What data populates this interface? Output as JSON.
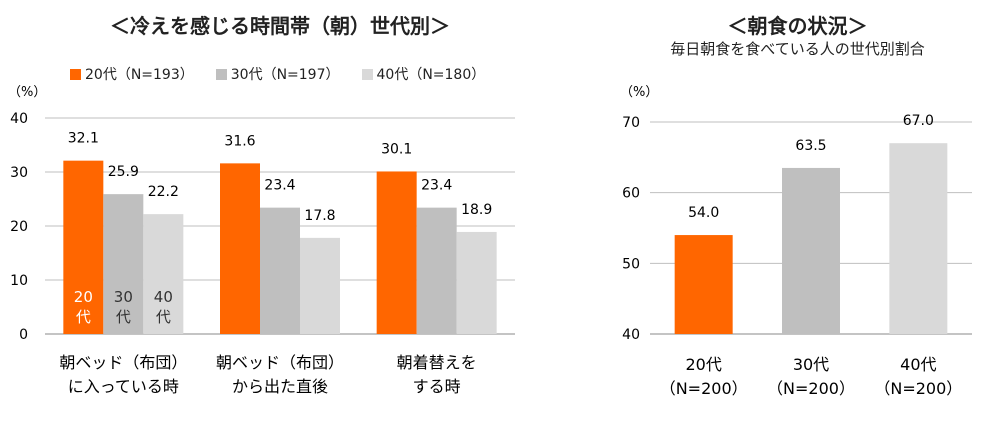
{
  "chart_data": [
    {
      "type": "bar",
      "title": "＜冷えを感じる時間帯（朝）世代別＞",
      "unit_label": "（%）",
      "ylim": [
        0,
        40
      ],
      "yticks": [
        0,
        10,
        20,
        30,
        40
      ],
      "grid": true,
      "legend_position": "top",
      "categories": [
        [
          "朝ベッド（布団）",
          "に入っている時"
        ],
        [
          "朝ベッド（布団）",
          "から出た直後"
        ],
        [
          "朝着替えを",
          "する時"
        ]
      ],
      "series": [
        {
          "name": "20代（N=193）",
          "color": "#FF6600",
          "in_bar_label": [
            "20",
            "代"
          ],
          "values": [
            32.1,
            31.6,
            30.1
          ]
        },
        {
          "name": "30代（N=197）",
          "color": "#BFBFBF",
          "in_bar_label": [
            "30",
            "代"
          ],
          "values": [
            25.9,
            23.4,
            23.4
          ]
        },
        {
          "name": "40代（N=180）",
          "color": "#D9D9D9",
          "in_bar_label": [
            "40",
            "代"
          ],
          "values": [
            22.2,
            17.8,
            18.9
          ]
        }
      ]
    },
    {
      "type": "bar",
      "title": "＜朝食の状況＞",
      "subtitle": "毎日朝食を食べている人の世代別割合",
      "unit_label": "（%）",
      "ylim": [
        40,
        70
      ],
      "yticks": [
        40,
        50,
        60,
        70
      ],
      "grid": true,
      "categories": [
        [
          "20代",
          "（N=200）"
        ],
        [
          "30代",
          "（N=200）"
        ],
        [
          "40代",
          "（N=200）"
        ]
      ],
      "values": [
        54.0,
        63.5,
        67.0
      ],
      "colors": [
        "#FF6600",
        "#BFBFBF",
        "#D9D9D9"
      ]
    }
  ]
}
